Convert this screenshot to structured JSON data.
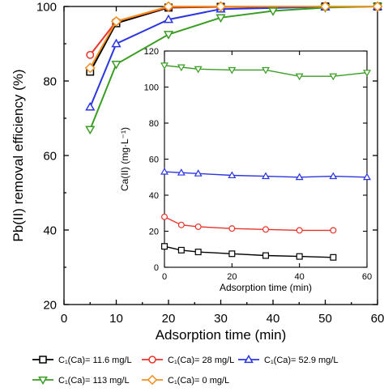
{
  "chart_data": [
    {
      "type": "line",
      "xlabel": "Adsorption time (min)",
      "ylabel": "Pb(II) removal efficiency (%)",
      "xlim": [
        0,
        60
      ],
      "ylim": [
        20,
        100
      ],
      "xticks": [
        "0",
        "10",
        "20",
        "30",
        "40",
        "50",
        "60"
      ],
      "yticks": [
        "20",
        "40",
        "60",
        "80",
        "100"
      ],
      "grid": false,
      "legend": "bottom",
      "series": [
        {
          "name": "C₁(Ca)= 11.6 mg/L",
          "marker": "square",
          "color": "#000000",
          "x": [
            5,
            10,
            20,
            30,
            50,
            60
          ],
          "y": [
            82.5,
            95.5,
            99.7,
            99.9,
            100,
            100
          ]
        },
        {
          "name": "C₁(Ca)= 28 mg/L",
          "marker": "circle",
          "color": "#e8332a",
          "x": [
            5,
            10,
            20,
            30,
            50,
            60
          ],
          "y": [
            87,
            96,
            99.8,
            99.9,
            100,
            100
          ]
        },
        {
          "name": "C₁(Ca)= 52.9 mg/L",
          "marker": "triangle-up",
          "color": "#2b35e0",
          "x": [
            5,
            10,
            20,
            30,
            50,
            60
          ],
          "y": [
            73,
            90,
            96.5,
            99.3,
            99.9,
            100
          ]
        },
        {
          "name": "C₁(Ca)= 113 mg/L",
          "marker": "triangle-down",
          "color": "#3a9d23",
          "x": [
            5,
            10,
            20,
            30,
            40,
            50,
            60
          ],
          "y": [
            67,
            84.5,
            92.5,
            97,
            98.8,
            99.7,
            100
          ]
        },
        {
          "name": "C₁(Ca)= 0 mg/L",
          "marker": "diamond",
          "color": "#f0901e",
          "x": [
            5,
            10,
            20,
            30,
            50,
            60
          ],
          "y": [
            83.5,
            96,
            100,
            100,
            100,
            100
          ]
        }
      ]
    },
    {
      "type": "line",
      "xlabel": "Adsorption time (min)",
      "ylabel": "Ca(II) (mg·L⁻¹)",
      "xlim": [
        0,
        60
      ],
      "ylim": [
        0,
        120
      ],
      "xticks": [
        "0",
        "20",
        "40",
        "60"
      ],
      "yticks": [
        "0",
        "20",
        "40",
        "60",
        "80",
        "100",
        "120"
      ],
      "grid": false,
      "series": [
        {
          "name": "C₁(Ca)= 113 mg/L",
          "marker": "triangle-down",
          "color": "#3a9d23",
          "x": [
            0,
            5,
            10,
            20,
            30,
            40,
            50,
            60
          ],
          "y": [
            112,
            111,
            110,
            109.5,
            109.5,
            106,
            106,
            108
          ]
        },
        {
          "name": "C₁(Ca)= 52.9 mg/L",
          "marker": "triangle-up",
          "color": "#2b35e0",
          "x": [
            0,
            5,
            10,
            20,
            30,
            40,
            50,
            60
          ],
          "y": [
            53,
            52.5,
            52,
            51,
            50.5,
            50,
            50.5,
            50
          ]
        },
        {
          "name": "C₁(Ca)= 28 mg/L",
          "marker": "circle",
          "color": "#e8332a",
          "x": [
            0,
            5,
            10,
            20,
            30,
            40,
            50
          ],
          "y": [
            28,
            23.5,
            22.5,
            21.5,
            21,
            20.5,
            20.5
          ]
        },
        {
          "name": "C₁(Ca)= 11.6 mg/L",
          "marker": "square",
          "color": "#000000",
          "x": [
            0,
            5,
            10,
            20,
            30,
            40,
            50
          ],
          "y": [
            11.6,
            9.5,
            8.5,
            7.5,
            6.5,
            6,
            5.5
          ]
        }
      ]
    }
  ]
}
